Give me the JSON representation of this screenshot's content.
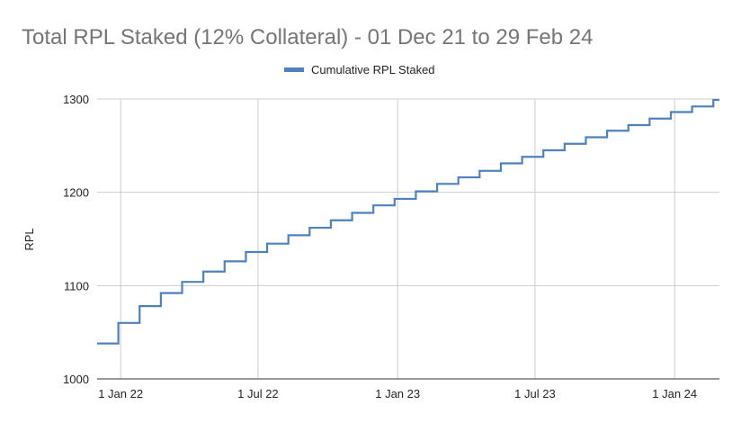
{
  "chart_data": {
    "type": "line",
    "title": "Total RPL Staked (12% Collateral) - 01 Dec 21 to 29 Feb 24",
    "xlabel": "",
    "ylabel": "RPL",
    "ylim": [
      1000,
      1300
    ],
    "xlim": [
      "2021-12-01",
      "2024-02-29"
    ],
    "grid": true,
    "legend_position": "top",
    "y_ticks": [
      "1000",
      "1100",
      "1200",
      "1300"
    ],
    "x_ticks": [
      {
        "label": "1 Jan 22",
        "date": "2022-01-01"
      },
      {
        "label": "1 Jul 22",
        "date": "2022-07-01"
      },
      {
        "label": "1 Jan 23",
        "date": "2023-01-01"
      },
      {
        "label": "1 Jul 23",
        "date": "2023-07-01"
      },
      {
        "label": "1 Jan 24",
        "date": "2024-01-01"
      }
    ],
    "step": true,
    "series": [
      {
        "name": "Cumulative RPL Staked",
        "color": "#4f81bd",
        "points": [
          {
            "date": "2021-12-01",
            "value": 1038
          },
          {
            "date": "2021-12-29",
            "value": 1060
          },
          {
            "date": "2022-01-26",
            "value": 1078
          },
          {
            "date": "2022-02-23",
            "value": 1092
          },
          {
            "date": "2022-03-23",
            "value": 1104
          },
          {
            "date": "2022-04-20",
            "value": 1115
          },
          {
            "date": "2022-05-18",
            "value": 1126
          },
          {
            "date": "2022-06-15",
            "value": 1136
          },
          {
            "date": "2022-07-13",
            "value": 1145
          },
          {
            "date": "2022-08-10",
            "value": 1154
          },
          {
            "date": "2022-09-07",
            "value": 1162
          },
          {
            "date": "2022-10-05",
            "value": 1170
          },
          {
            "date": "2022-11-02",
            "value": 1178
          },
          {
            "date": "2022-11-30",
            "value": 1186
          },
          {
            "date": "2022-12-28",
            "value": 1193
          },
          {
            "date": "2023-01-25",
            "value": 1201
          },
          {
            "date": "2023-02-22",
            "value": 1209
          },
          {
            "date": "2023-03-22",
            "value": 1216
          },
          {
            "date": "2023-04-19",
            "value": 1223
          },
          {
            "date": "2023-05-17",
            "value": 1231
          },
          {
            "date": "2023-06-14",
            "value": 1238
          },
          {
            "date": "2023-07-12",
            "value": 1245
          },
          {
            "date": "2023-08-09",
            "value": 1252
          },
          {
            "date": "2023-09-06",
            "value": 1259
          },
          {
            "date": "2023-10-04",
            "value": 1266
          },
          {
            "date": "2023-11-01",
            "value": 1272
          },
          {
            "date": "2023-11-29",
            "value": 1279
          },
          {
            "date": "2023-12-27",
            "value": 1286
          },
          {
            "date": "2024-01-24",
            "value": 1292
          },
          {
            "date": "2024-02-21",
            "value": 1299
          },
          {
            "date": "2024-02-29",
            "value": 1299
          }
        ]
      }
    ]
  }
}
